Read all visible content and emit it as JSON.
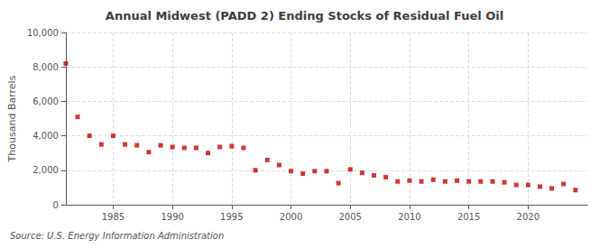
{
  "chart_data": {
    "type": "scatter",
    "title": "Annual Midwest (PADD 2) Ending Stocks of Residual Fuel Oil",
    "ylabel": "Thousand Barrels",
    "source": "Source: U.S. Energy Information Administration",
    "x": [
      1981,
      1982,
      1983,
      1984,
      1985,
      1986,
      1987,
      1988,
      1989,
      1990,
      1991,
      1992,
      1993,
      1994,
      1995,
      1996,
      1997,
      1998,
      1999,
      2000,
      2001,
      2002,
      2003,
      2004,
      2005,
      2006,
      2007,
      2008,
      2009,
      2010,
      2011,
      2012,
      2013,
      2014,
      2015,
      2016,
      2017,
      2018,
      2019,
      2020,
      2021,
      2022,
      2023,
      2024
    ],
    "values": [
      8200,
      5100,
      4000,
      3500,
      4000,
      3500,
      3450,
      3050,
      3450,
      3350,
      3300,
      3300,
      3000,
      3350,
      3400,
      3300,
      2000,
      2600,
      2300,
      1950,
      1800,
      1950,
      1950,
      1250,
      2050,
      1850,
      1700,
      1600,
      1350,
      1400,
      1350,
      1450,
      1350,
      1400,
      1350,
      1350,
      1350,
      1300,
      1150,
      1150,
      1050,
      950,
      1200,
      850
    ],
    "color": "#cc0000",
    "marker": "square",
    "xlim": [
      1981.0,
      2025.0
    ],
    "xticks": [
      1985,
      1990,
      1995,
      2000,
      2005,
      2010,
      2015,
      2020
    ],
    "ylim": [
      0,
      10000
    ],
    "yticks": [
      0,
      {
        "value": 2000,
        "label": "2,000"
      },
      {
        "value": 4000,
        "label": "4,000"
      },
      {
        "value": 6000,
        "label": "6,000"
      },
      {
        "value": 8000,
        "label": "8,000"
      },
      {
        "value": 10000,
        "label": "10,000"
      }
    ],
    "grid": true
  }
}
